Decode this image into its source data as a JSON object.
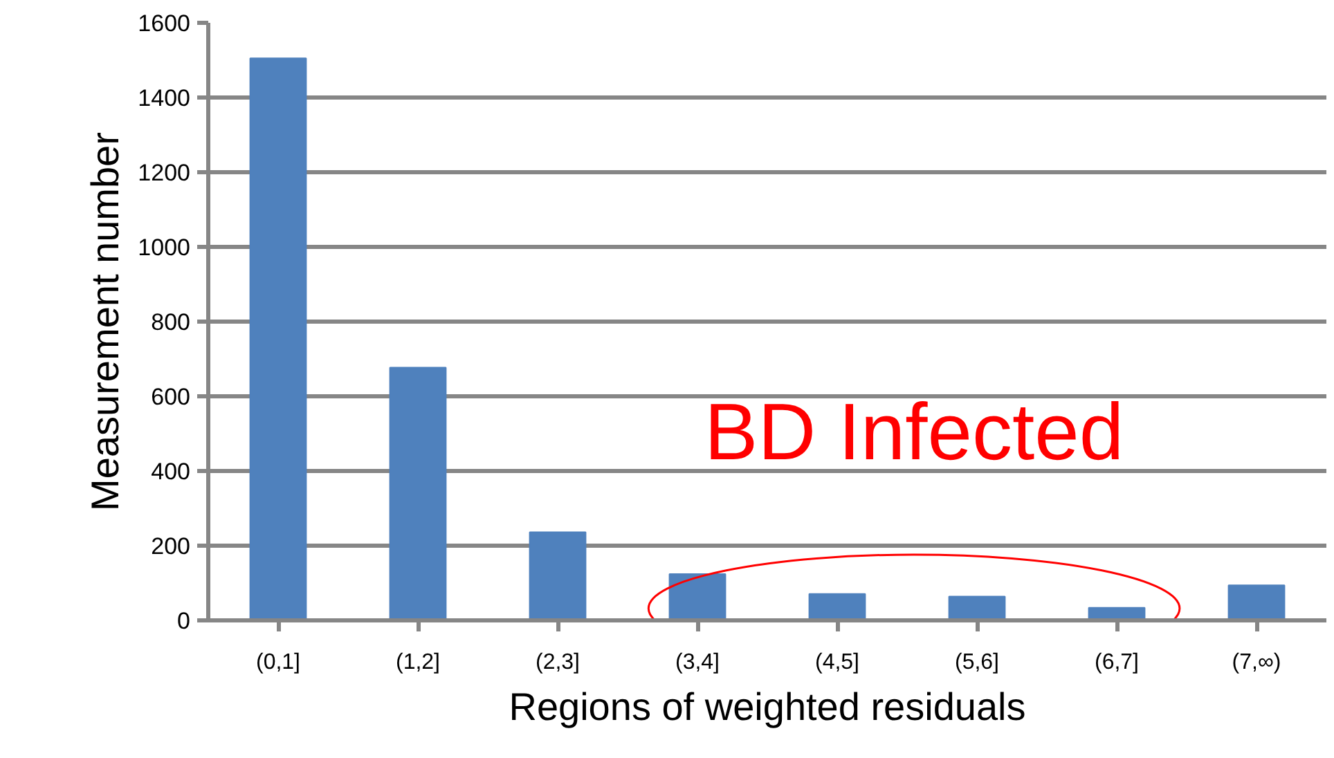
{
  "chart_data": {
    "type": "bar",
    "xlabel": "Regions of weighted residuals",
    "ylabel": "Measurement number",
    "categories": [
      "(0,1]",
      "(1,2]",
      "(2,3]",
      "(3,4]",
      "(4,5]",
      "(5,6]",
      "(6,7]",
      "(7,∞)"
    ],
    "values": [
      1505,
      677,
      236,
      124,
      71,
      64,
      34,
      94
    ],
    "color": "#4f81bd",
    "ylim": [
      0,
      1600
    ],
    "yticks": [
      0,
      200,
      400,
      600,
      800,
      1000,
      1200,
      1400,
      1600
    ],
    "grid": "y",
    "annotations": [
      "BD Infected"
    ]
  }
}
